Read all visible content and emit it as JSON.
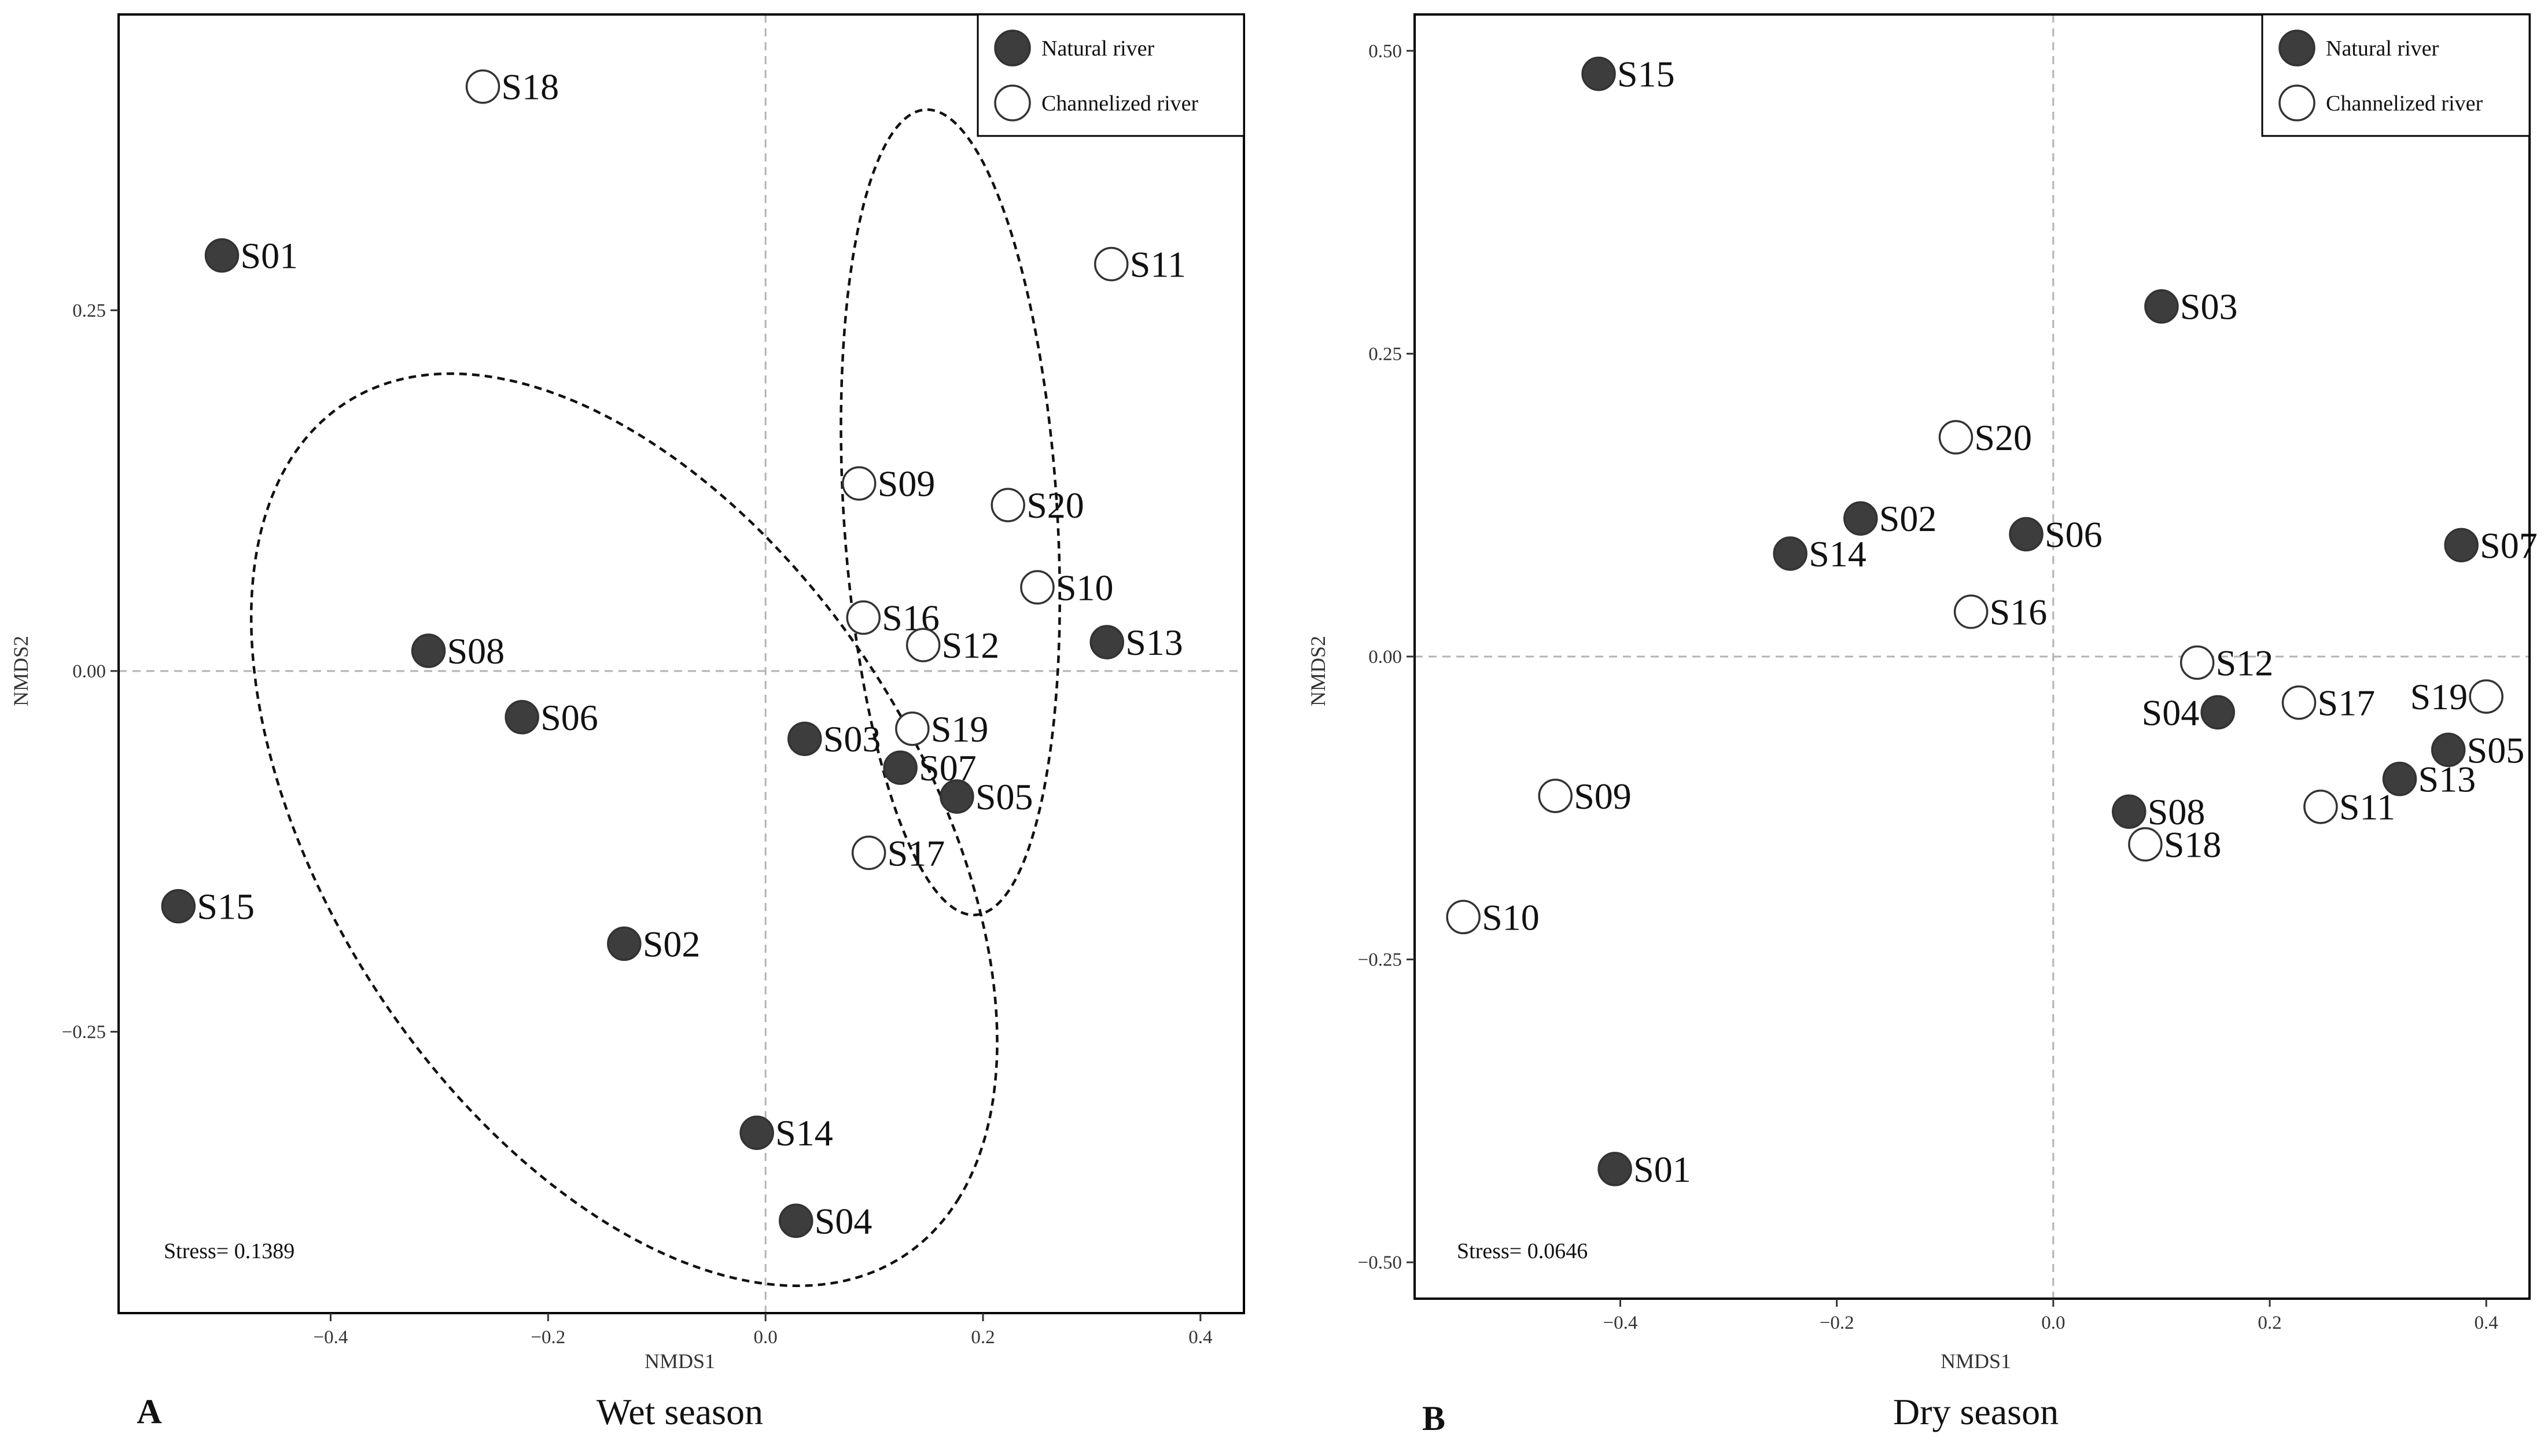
{
  "chart_data": [
    {
      "type": "scatter",
      "panel": "A",
      "season_title": "Wet season",
      "xlabel": "NMDS1",
      "ylabel": "NMDS2",
      "xlim": [
        -0.595,
        0.44
      ],
      "ylim": [
        -0.445,
        0.455
      ],
      "x_ticks": [
        -0.4,
        -0.2,
        0.0,
        0.2,
        0.4
      ],
      "x_tick_labels": [
        "−0.4",
        "−0.2",
        "0.0",
        "0.2",
        "0.4"
      ],
      "y_ticks": [
        -0.25,
        0.0,
        0.25
      ],
      "y_tick_labels": [
        "−0.25",
        "0.00",
        "0.25"
      ],
      "stress_text": "Stress= 0.1389",
      "legend_position": "top-right",
      "legend": [
        {
          "label": "Natural river",
          "group": "natural"
        },
        {
          "label": "Channelized river",
          "group": "channelized"
        }
      ],
      "ellipses": [
        {
          "group": "natural",
          "center": [
            -0.13,
            -0.11
          ],
          "semi_axes": [
            0.4,
            0.24
          ],
          "rotation_deg": -40
        },
        {
          "group": "channelized",
          "center": [
            0.17,
            0.11
          ],
          "semi_axes": [
            0.098,
            0.28
          ],
          "rotation_deg": 5
        }
      ],
      "points": [
        {
          "label": "S18",
          "x": -0.26,
          "y": 0.405,
          "group": "channelized"
        },
        {
          "label": "S01",
          "x": -0.5,
          "y": 0.288,
          "group": "natural"
        },
        {
          "label": "S11",
          "x": 0.318,
          "y": 0.282,
          "group": "channelized"
        },
        {
          "label": "S09",
          "x": 0.086,
          "y": 0.13,
          "group": "channelized"
        },
        {
          "label": "S20",
          "x": 0.223,
          "y": 0.115,
          "group": "channelized"
        },
        {
          "label": "S10",
          "x": 0.25,
          "y": 0.058,
          "group": "channelized"
        },
        {
          "label": "S16",
          "x": 0.09,
          "y": 0.037,
          "group": "channelized"
        },
        {
          "label": "S12",
          "x": 0.145,
          "y": 0.018,
          "group": "channelized"
        },
        {
          "label": "S13",
          "x": 0.314,
          "y": 0.02,
          "group": "natural"
        },
        {
          "label": "S08",
          "x": -0.31,
          "y": 0.014,
          "group": "natural"
        },
        {
          "label": "S06",
          "x": -0.224,
          "y": -0.032,
          "group": "natural"
        },
        {
          "label": "S19",
          "x": 0.135,
          "y": -0.04,
          "group": "channelized"
        },
        {
          "label": "S03",
          "x": 0.036,
          "y": -0.047,
          "group": "natural"
        },
        {
          "label": "S07",
          "x": 0.124,
          "y": -0.067,
          "group": "natural"
        },
        {
          "label": "S05",
          "x": 0.176,
          "y": -0.087,
          "group": "natural"
        },
        {
          "label": "S17",
          "x": 0.095,
          "y": -0.126,
          "group": "channelized"
        },
        {
          "label": "S15",
          "x": -0.54,
          "y": -0.163,
          "group": "natural"
        },
        {
          "label": "S02",
          "x": -0.13,
          "y": -0.189,
          "group": "natural"
        },
        {
          "label": "S14",
          "x": -0.008,
          "y": -0.32,
          "group": "natural"
        },
        {
          "label": "S04",
          "x": 0.028,
          "y": -0.381,
          "group": "natural"
        }
      ]
    },
    {
      "type": "scatter",
      "panel": "B",
      "season_title": "Dry season",
      "xlabel": "NMDS1",
      "ylabel": "NMDS2",
      "xlim": [
        -0.59,
        0.44
      ],
      "ylim": [
        -0.53,
        0.53
      ],
      "x_ticks": [
        -0.4,
        -0.2,
        0.0,
        0.2,
        0.4
      ],
      "x_tick_labels": [
        "−0.4",
        "−0.2",
        "0.0",
        "0.2",
        "0.4"
      ],
      "y_ticks": [
        -0.5,
        -0.25,
        0.0,
        0.25,
        0.5
      ],
      "y_tick_labels": [
        "−0.50",
        "−0.25",
        "0.00",
        "0.25",
        "0.50"
      ],
      "stress_text": "Stress= 0.0646",
      "legend_position": "top-right",
      "legend": [
        {
          "label": "Natural river",
          "group": "natural"
        },
        {
          "label": "Channelized river",
          "group": "channelized"
        }
      ],
      "points": [
        {
          "label": "S15",
          "x": -0.42,
          "y": 0.481,
          "group": "natural"
        },
        {
          "label": "S03",
          "x": 0.1,
          "y": 0.289,
          "group": "natural"
        },
        {
          "label": "S20",
          "x": -0.09,
          "y": 0.181,
          "group": "channelized"
        },
        {
          "label": "S02",
          "x": -0.178,
          "y": 0.114,
          "group": "natural"
        },
        {
          "label": "S06",
          "x": -0.025,
          "y": 0.101,
          "group": "natural"
        },
        {
          "label": "S07",
          "x": 0.377,
          "y": 0.092,
          "group": "natural"
        },
        {
          "label": "S14",
          "x": -0.243,
          "y": 0.085,
          "group": "natural"
        },
        {
          "label": "S16",
          "x": -0.076,
          "y": 0.037,
          "group": "channelized"
        },
        {
          "label": "S12",
          "x": 0.133,
          "y": -0.005,
          "group": "channelized"
        },
        {
          "label": "S19",
          "x": 0.4,
          "y": -0.033,
          "group": "channelized",
          "label_side": "left"
        },
        {
          "label": "S04",
          "x": 0.152,
          "y": -0.046,
          "group": "natural",
          "label_side": "left"
        },
        {
          "label": "S17",
          "x": 0.227,
          "y": -0.038,
          "group": "channelized"
        },
        {
          "label": "S05",
          "x": 0.365,
          "y": -0.077,
          "group": "natural"
        },
        {
          "label": "S13",
          "x": 0.32,
          "y": -0.101,
          "group": "natural"
        },
        {
          "label": "S09",
          "x": -0.46,
          "y": -0.115,
          "group": "channelized"
        },
        {
          "label": "S11",
          "x": 0.247,
          "y": -0.124,
          "group": "channelized"
        },
        {
          "label": "S08",
          "x": 0.07,
          "y": -0.128,
          "group": "natural"
        },
        {
          "label": "S18",
          "x": 0.085,
          "y": -0.155,
          "group": "channelized"
        },
        {
          "label": "S10",
          "x": -0.545,
          "y": -0.215,
          "group": "channelized"
        },
        {
          "label": "S01",
          "x": -0.405,
          "y": -0.423,
          "group": "natural"
        }
      ]
    }
  ],
  "colors": {
    "natural_fill": "#3d3d3d",
    "channelized_fill": "#ffffff",
    "marker_stroke": "#333333",
    "frame": "#000000",
    "zero_line": "#b3b3b3",
    "ellipse": "#111111"
  }
}
